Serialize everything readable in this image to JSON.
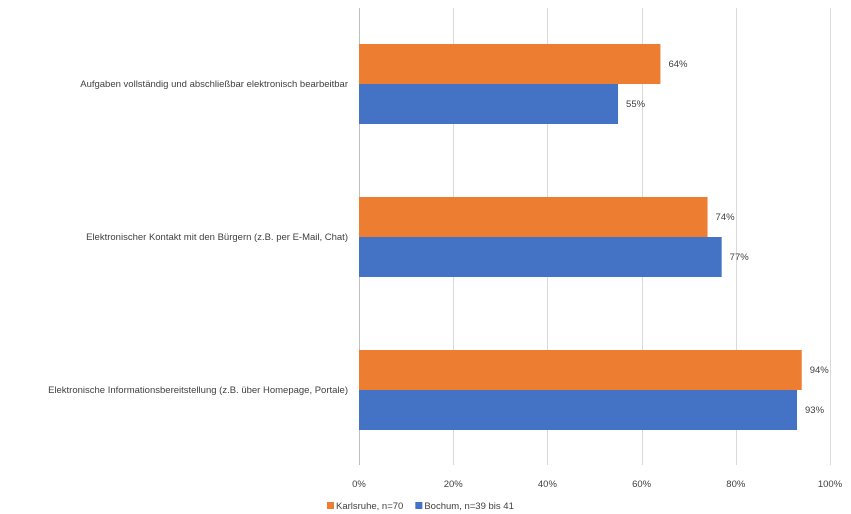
{
  "chart_data": {
    "type": "bar",
    "orientation": "horizontal",
    "categories": [
      "Aufgaben vollständig und abschließbar elektronisch bearbeitbar",
      "Elektronischer Kontakt mit den Bürgern (z.B. per E-Mail, Chat)",
      "Elektronische Informationsbereitstellung (z.B. über Homepage, Portale)"
    ],
    "series": [
      {
        "name": "Karlsruhe, n=70",
        "color": "#ED7D31",
        "values": [
          64,
          74,
          94
        ],
        "labels": [
          "64%",
          "74%",
          "94%"
        ]
      },
      {
        "name": "Bochum, n=39 bis 41",
        "color": "#4472C4",
        "values": [
          55,
          77,
          93
        ],
        "labels": [
          "55%",
          "77%",
          "93%"
        ]
      }
    ],
    "xlim": [
      0,
      100
    ],
    "xticks": [
      "0%",
      "20%",
      "40%",
      "60%",
      "80%",
      "100%"
    ],
    "grid": true,
    "legend_position": "bottom"
  }
}
